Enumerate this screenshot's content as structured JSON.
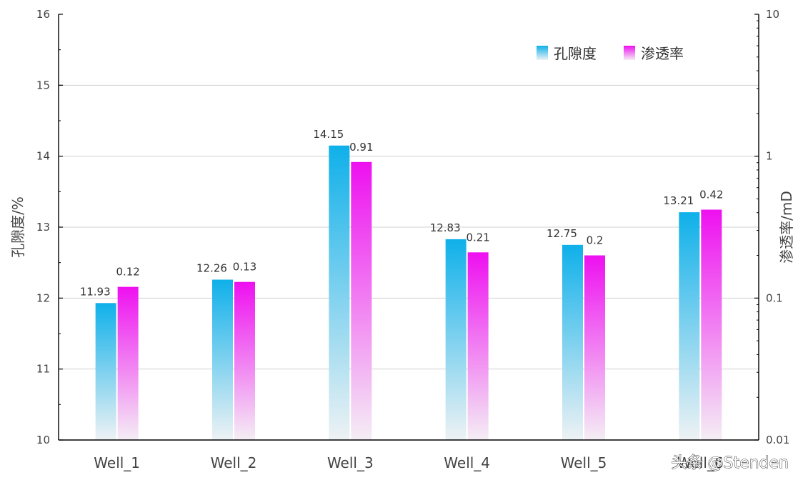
{
  "chart_data": {
    "type": "bar",
    "categories": [
      "Well_1",
      "Well_2",
      "Well_3",
      "Well_4",
      "Well_5",
      "Well_6"
    ],
    "series": [
      {
        "name": "孔隙度",
        "axis": "left",
        "values": [
          11.93,
          12.26,
          14.15,
          12.83,
          12.75,
          13.21
        ],
        "labels": [
          "11.93",
          "12.26",
          "14.15",
          "12.83",
          "12.75",
          "13.21"
        ],
        "color_top": "#0fb0ea",
        "color_bottom": "#eef2f4"
      },
      {
        "name": "渗透率",
        "axis": "right",
        "values": [
          0.12,
          0.13,
          0.91,
          0.21,
          0.2,
          0.42
        ],
        "labels": [
          "0.12",
          "0.13",
          "0.91",
          "0.21",
          "0.2",
          "0.42"
        ],
        "color_top": "#ee10f0",
        "color_bottom": "#f4eef4"
      }
    ],
    "ylabel": "孔隙度/%",
    "y2label": "渗透率/mD",
    "ylim": [
      10,
      16
    ],
    "yticks": [
      "10",
      "11",
      "12",
      "13",
      "14",
      "15",
      "16"
    ],
    "y2lim": [
      0.01,
      10
    ],
    "y2scale": "log",
    "y2ticks": [
      "0.01",
      "0.1",
      "1",
      "10"
    ],
    "grid": true,
    "legend_position": "top-right"
  },
  "watermark": "头条 @Stenden"
}
